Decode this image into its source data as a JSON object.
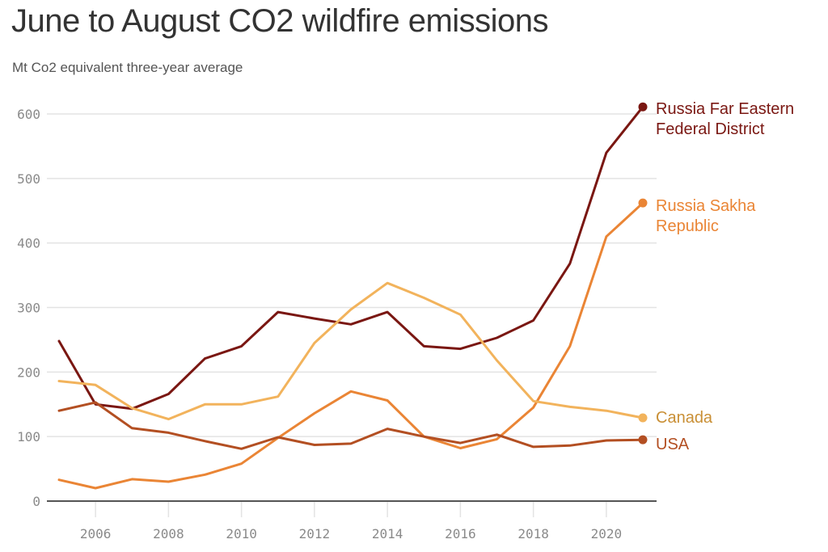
{
  "chart_data": {
    "type": "line",
    "title": "June to August CO2 wildfire emissions",
    "subtitle": "Mt Co2 equivalent three-year average",
    "xlabel": "",
    "ylabel": "",
    "x": [
      2005,
      2006,
      2007,
      2008,
      2009,
      2010,
      2011,
      2012,
      2013,
      2014,
      2015,
      2016,
      2017,
      2018,
      2019,
      2020,
      2021
    ],
    "xlim": [
      2005,
      2021
    ],
    "ylim": [
      0,
      600
    ],
    "x_ticks": [
      2006,
      2008,
      2010,
      2012,
      2014,
      2016,
      2018,
      2020
    ],
    "x_tick_labels": [
      "2006",
      "2008",
      "2010",
      "2012",
      "2014",
      "2016",
      "2018",
      "2020"
    ],
    "y_ticks": [
      0,
      100,
      200,
      300,
      400,
      500,
      600
    ],
    "y_tick_labels": [
      "0",
      "100",
      "200",
      "300",
      "400",
      "500",
      "600"
    ],
    "grid": true,
    "legend": "direct-labels-right",
    "series": [
      {
        "name": "Russia Far Eastern Federal District",
        "label_lines": [
          "Russia Far Eastern",
          "Federal District"
        ],
        "color": "#7a1712",
        "label_color": "#7a1712",
        "values": [
          248,
          150,
          143,
          166,
          221,
          240,
          293,
          283,
          274,
          293,
          240,
          236,
          253,
          280,
          368,
          540,
          611
        ]
      },
      {
        "name": "Russia Sakha Republic",
        "label_lines": [
          "Russia Sakha",
          "Republic"
        ],
        "color": "#ea8535",
        "label_color": "#ea8535",
        "values": [
          33,
          20,
          34,
          30,
          41,
          58,
          98,
          136,
          170,
          156,
          100,
          82,
          96,
          145,
          240,
          410,
          462
        ]
      },
      {
        "name": "Canada",
        "label_lines": [
          "Canada"
        ],
        "color": "#f2b35c",
        "label_color": "#c98f35",
        "values": [
          186,
          180,
          144,
          127,
          150,
          150,
          162,
          245,
          297,
          338,
          315,
          289,
          218,
          155,
          146,
          140,
          129
        ]
      },
      {
        "name": "USA",
        "label_lines": [
          "USA"
        ],
        "color": "#b34f22",
        "label_color": "#b34f22",
        "values": [
          140,
          153,
          113,
          106,
          93,
          81,
          99,
          87,
          89,
          112,
          100,
          90,
          103,
          84,
          86,
          94,
          95
        ]
      }
    ]
  }
}
